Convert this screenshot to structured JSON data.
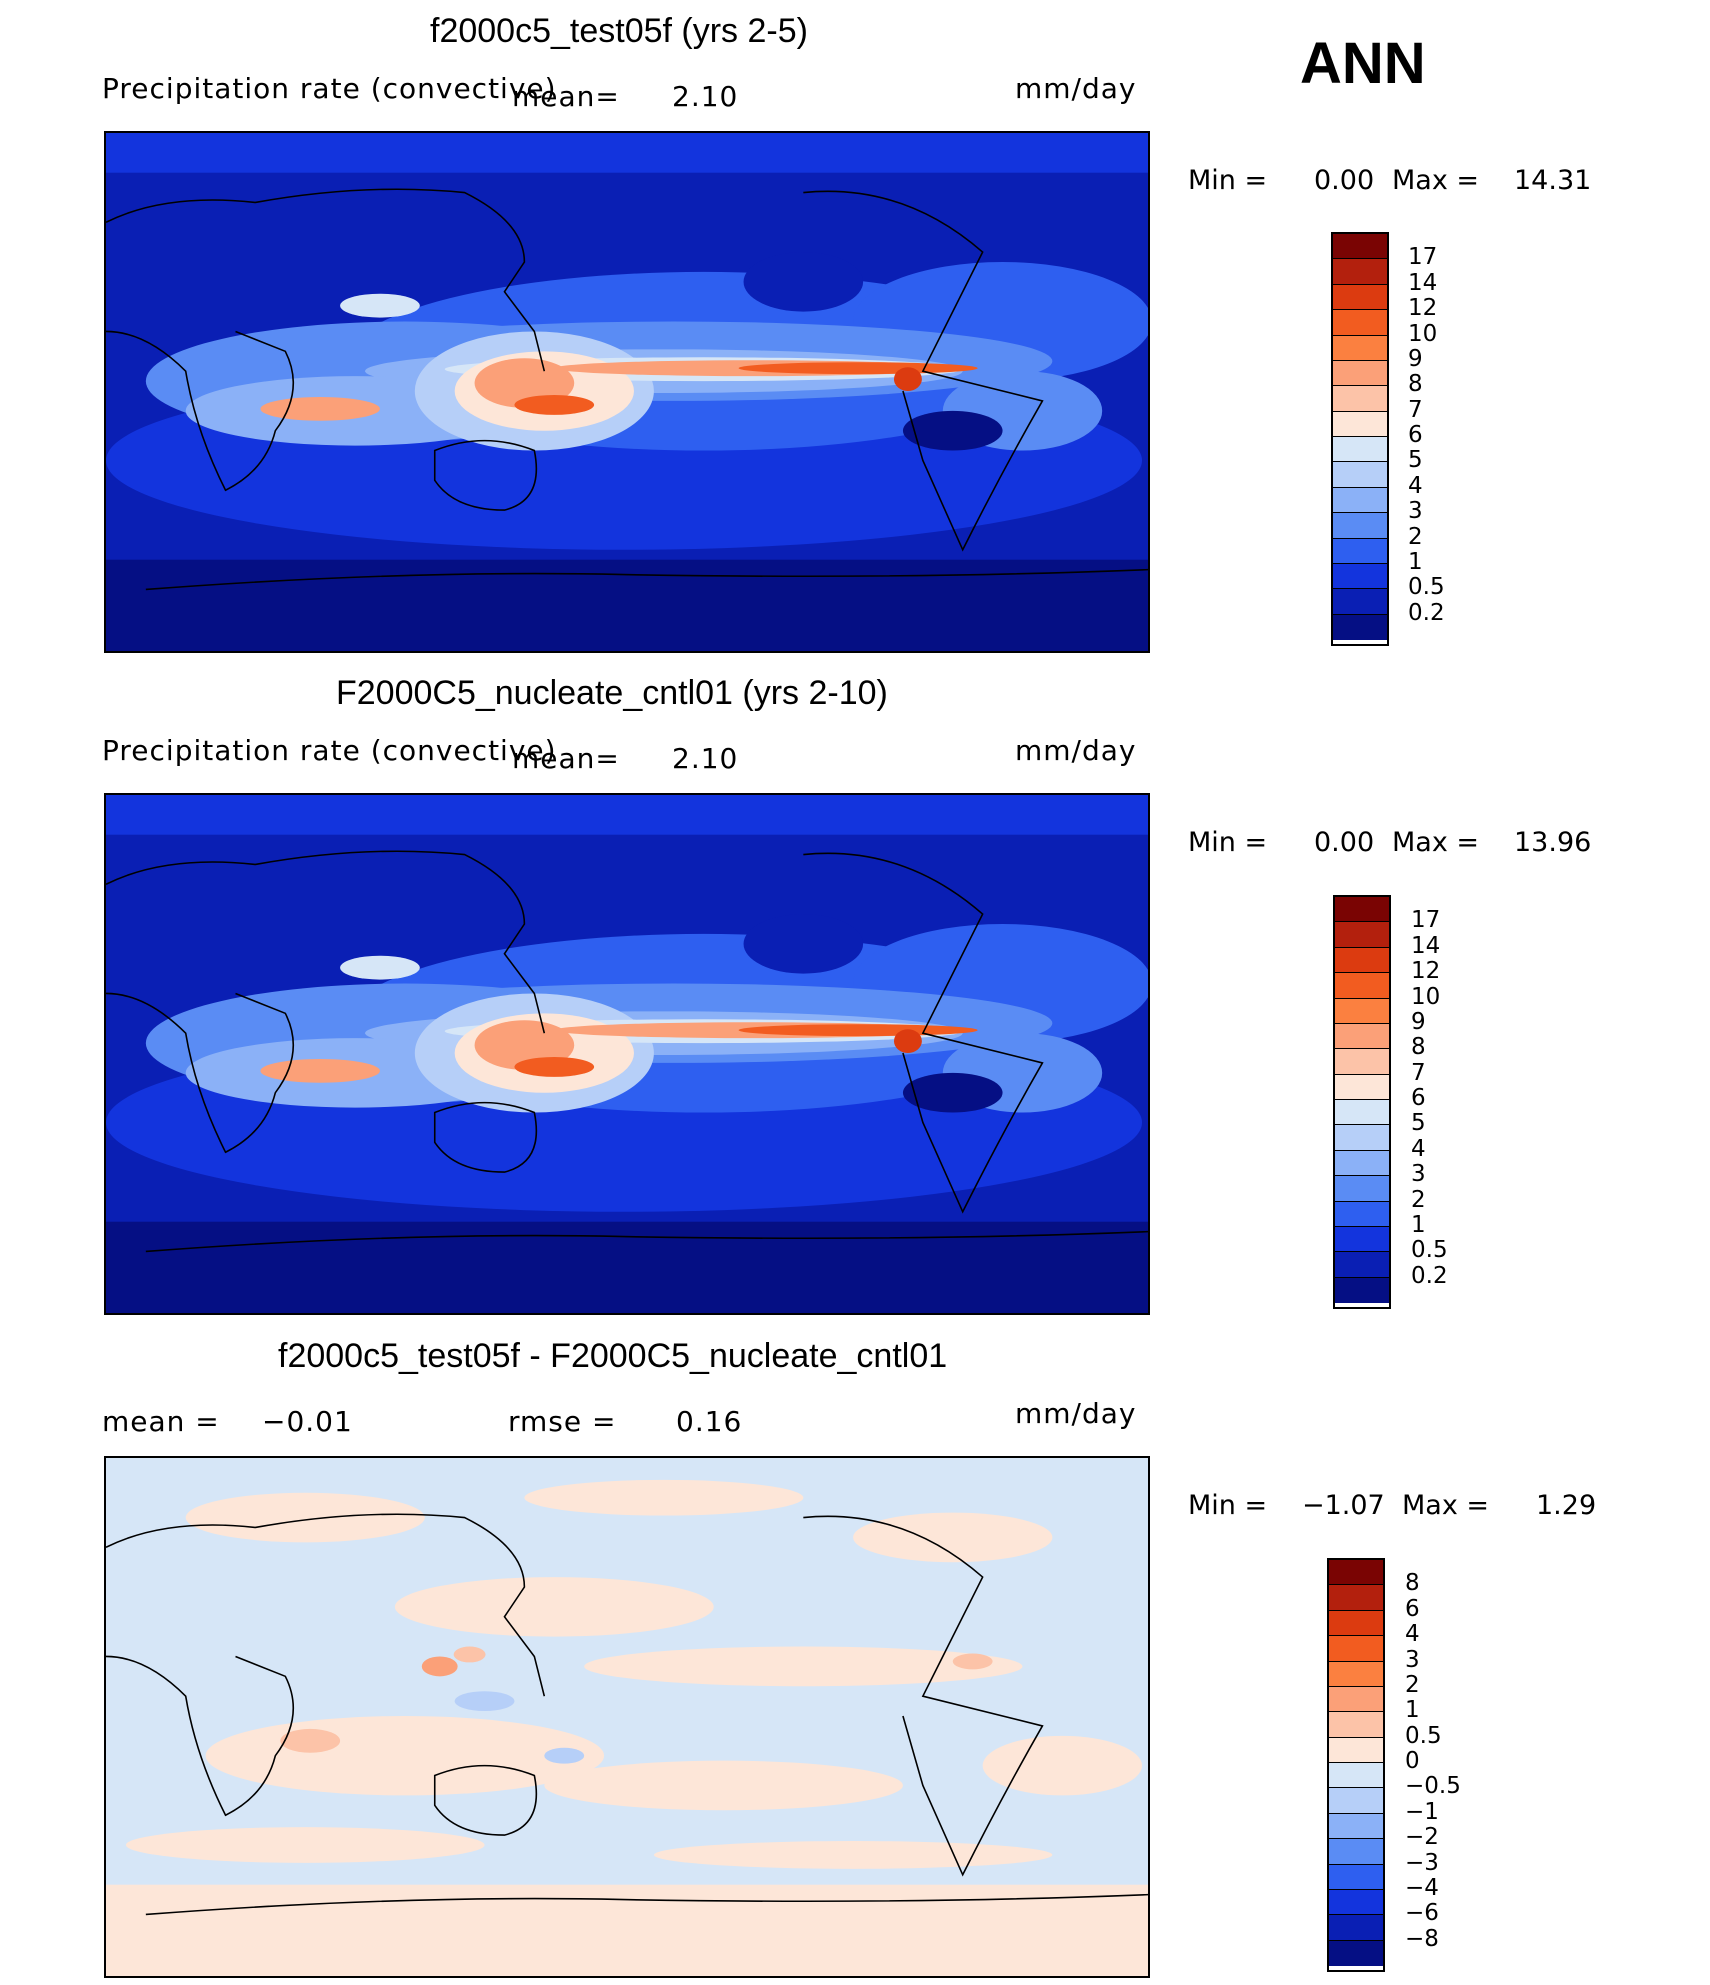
{
  "season": "ANN",
  "panels": [
    {
      "title": "f2000c5_test05f (yrs 2-5)",
      "variable": "Precipitation rate (convective)",
      "stat1_label": "mean=",
      "stat1_value": "2.10",
      "units": "mm/day",
      "min_label": "Min =",
      "min_value": "0.00",
      "max_label": "Max =",
      "max_value": "14.31",
      "colorbar_labels": [
        "17",
        "14",
        "12",
        "10",
        "9",
        "8",
        "7",
        "6",
        "5",
        "4",
        "3",
        "2",
        "1",
        "0.5",
        "0.2"
      ]
    },
    {
      "title": "F2000C5_nucleate_cntl01 (yrs 2-10)",
      "variable": "Precipitation rate (convective)",
      "stat1_label": "mean=",
      "stat1_value": "2.10",
      "units": "mm/day",
      "min_label": "Min =",
      "min_value": "0.00",
      "max_label": "Max =",
      "max_value": "13.96",
      "colorbar_labels": [
        "17",
        "14",
        "12",
        "10",
        "9",
        "8",
        "7",
        "6",
        "5",
        "4",
        "3",
        "2",
        "1",
        "0.5",
        "0.2"
      ]
    },
    {
      "title": "f2000c5_test05f - F2000C5_nucleate_cntl01",
      "stat1_label": "mean =",
      "stat1_value": "−0.01",
      "stat2_label": "rmse =",
      "stat2_value": "0.16",
      "units": "mm/day",
      "min_label": "Min =",
      "min_value": "−1.07",
      "max_label": "Max =",
      "max_value": "1.29",
      "colorbar_labels": [
        "8",
        "6",
        "4",
        "3",
        "2",
        "1",
        "0.5",
        "0",
        "−0.5",
        "−1",
        "−2",
        "−3",
        "−4",
        "−6",
        "−8"
      ]
    }
  ],
  "colors": {
    "precip_scale": [
      "#7a0403",
      "#b3200d",
      "#dc3b10",
      "#f25c20",
      "#fb8040",
      "#fba078",
      "#fcc3a8",
      "#fde6d8",
      "#d6e6f7",
      "#b6cff8",
      "#8bb1f7",
      "#5a8cf4",
      "#2e5ff0",
      "#1334dd",
      "#0a1fb4",
      "#050f84"
    ],
    "diff_scale": [
      "#7a0403",
      "#b3200d",
      "#dc3b10",
      "#f25c20",
      "#fb8040",
      "#fba078",
      "#fcc3a8",
      "#fde6d8",
      "#d6e6f7",
      "#b6cff8",
      "#8bb1f7",
      "#5a8cf4",
      "#2e5ff0",
      "#1334dd",
      "#0a1fb4",
      "#050f84"
    ]
  }
}
